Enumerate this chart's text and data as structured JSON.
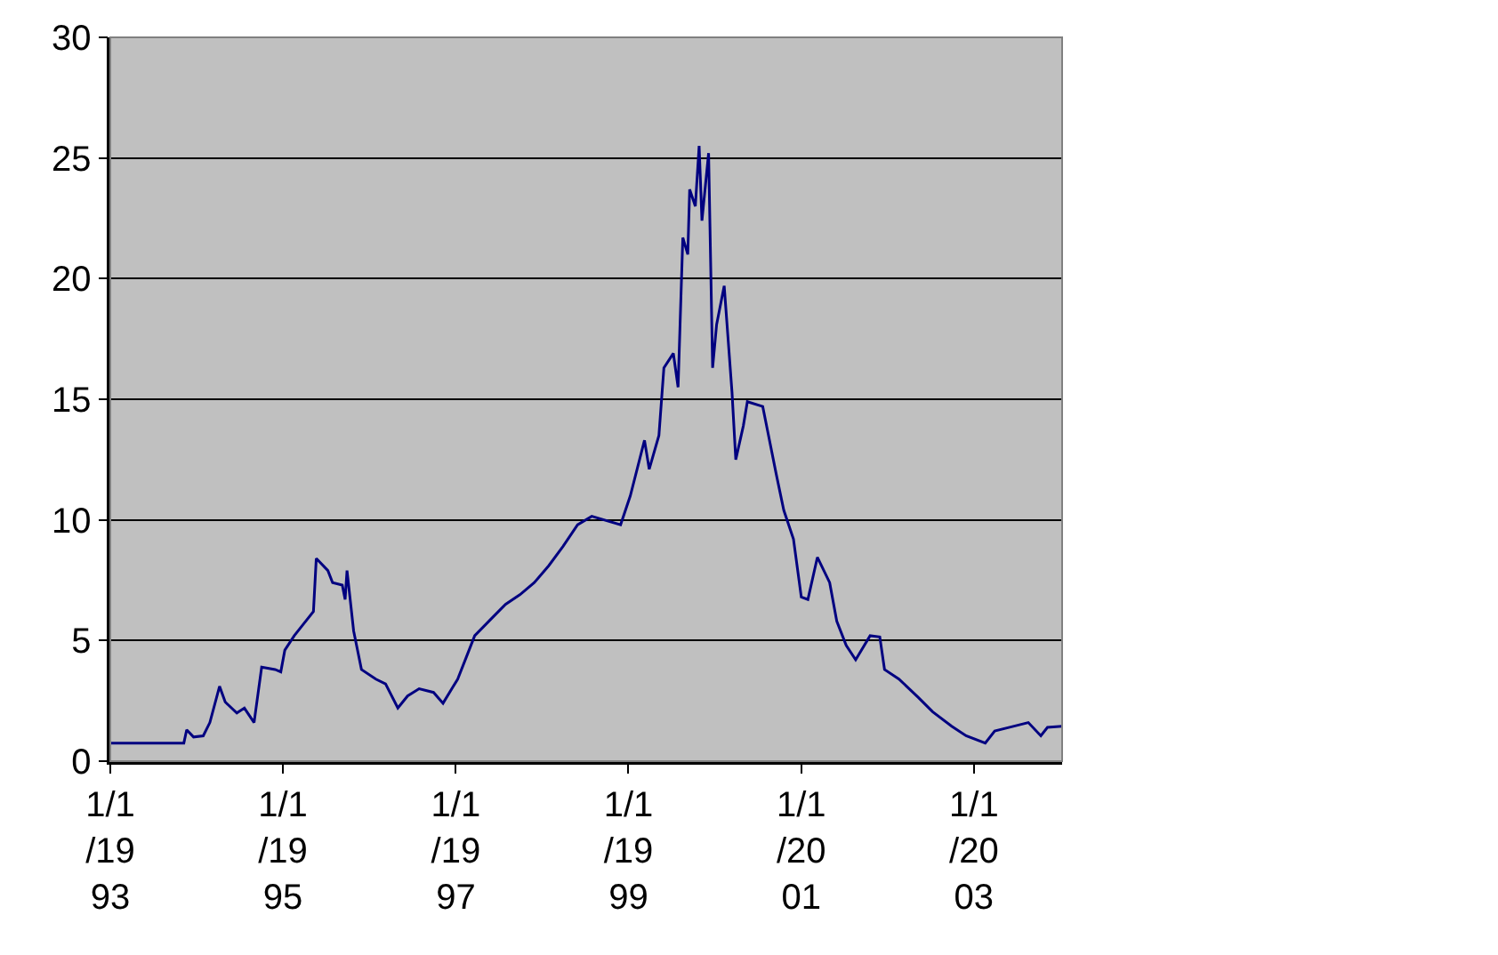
{
  "chart_data": {
    "type": "line",
    "grid": "y",
    "line_style": "solid",
    "marker": "none",
    "xlim": [
      "1993-01-01",
      "2004-01-09"
    ],
    "xticks": [
      {
        "value": "1993-01-01",
        "label": "1/1/1993"
      },
      {
        "value": "1995-01-01",
        "label": "1/1/1995"
      },
      {
        "value": "1997-01-01",
        "label": "1/1/1997"
      },
      {
        "value": "1999-01-01",
        "label": "1/1/1999"
      },
      {
        "value": "2001-01-01",
        "label": "1/1/2001"
      },
      {
        "value": "2003-01-01",
        "label": "1/1/2003"
      }
    ],
    "ylim": [
      0,
      30
    ],
    "yticks": [
      0,
      5,
      10,
      15,
      20,
      25,
      30
    ],
    "x": [
      "1993-01-01",
      "1993-11-08",
      "1993-11-20",
      "1993-12-19",
      "1994-01-29",
      "1994-02-26",
      "1994-04-08",
      "1994-05-02",
      "1994-06-20",
      "1994-07-22",
      "1994-09-01",
      "1994-10-03",
      "1994-11-29",
      "1994-12-23",
      "1995-01-09",
      "1995-02-18",
      "1995-03-22",
      "1995-05-10",
      "1995-05-22",
      "1995-07-10",
      "1995-07-30",
      "1995-09-09",
      "1995-09-21",
      "1995-09-29",
      "1995-10-27",
      "1995-11-29",
      "1996-01-29",
      "1996-03-10",
      "1996-05-01",
      "1996-06-11",
      "1996-07-30",
      "1996-09-29",
      "1996-11-08",
      "1997-01-09",
      "1997-02-18",
      "1997-03-22",
      "1997-05-31",
      "1997-07-30",
      "1997-09-29",
      "1997-11-29",
      "1998-01-29",
      "1998-03-30",
      "1998-05-31",
      "1998-07-30",
      "1998-11-29",
      "1999-01-09",
      "1999-03-10",
      "1999-03-30",
      "1999-05-10",
      "1999-05-31",
      "1999-07-10",
      "1999-07-30",
      "1999-08-19",
      "1999-09-09",
      "1999-09-17",
      "1999-10-11",
      "1999-10-27",
      "1999-11-08",
      "1999-12-06",
      "1999-12-23",
      "2000-01-09",
      "2000-02-10",
      "2000-03-14",
      "2000-03-30",
      "2000-05-01",
      "2000-05-18",
      "2000-07-22",
      "2000-09-17",
      "2000-10-19",
      "2000-11-29",
      "2001-01-01",
      "2001-01-29",
      "2001-03-10",
      "2001-05-01",
      "2001-05-31",
      "2001-07-10",
      "2001-08-19",
      "2001-10-19",
      "2001-11-29",
      "2001-12-19",
      "2002-02-18",
      "2002-05-10",
      "2002-07-10",
      "2002-09-29",
      "2002-11-29",
      "2003-02-18",
      "2003-03-30",
      "2003-06-20",
      "2003-08-19",
      "2003-10-11",
      "2003-11-08",
      "2004-01-09"
    ],
    "series": [
      {
        "color": "#000080",
        "values": [
          0.75,
          0.75,
          1.3,
          1.0,
          1.05,
          1.6,
          3.1,
          2.45,
          2.0,
          2.2,
          1.6,
          3.9,
          3.8,
          3.7,
          4.6,
          5.2,
          5.6,
          6.2,
          8.4,
          7.9,
          7.4,
          7.3,
          6.7,
          7.9,
          5.4,
          3.8,
          3.4,
          3.2,
          2.2,
          2.7,
          3.0,
          2.85,
          2.4,
          3.4,
          4.4,
          5.2,
          5.9,
          6.5,
          6.9,
          7.4,
          8.1,
          8.9,
          9.8,
          10.15,
          9.8,
          11.0,
          13.3,
          12.1,
          13.5,
          16.3,
          16.9,
          15.5,
          21.7,
          21.0,
          23.7,
          23.0,
          25.5,
          22.4,
          25.2,
          16.3,
          18.1,
          19.7,
          15.3,
          12.5,
          13.9,
          14.9,
          14.7,
          11.9,
          10.4,
          9.2,
          6.8,
          6.7,
          8.45,
          7.4,
          5.8,
          4.8,
          4.2,
          5.2,
          5.15,
          3.8,
          3.4,
          2.65,
          2.05,
          1.45,
          1.05,
          0.75,
          1.25,
          1.45,
          1.6,
          1.05,
          1.4,
          1.45
        ]
      }
    ]
  }
}
